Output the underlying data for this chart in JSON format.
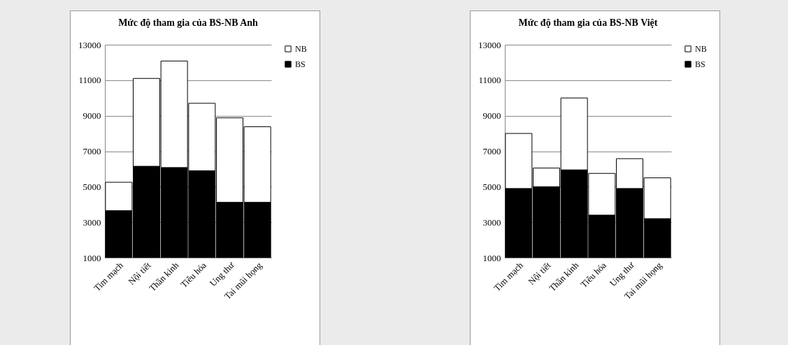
{
  "chart_data": [
    {
      "type": "bar",
      "title": "Mức độ tham gia của BS-NB Anh",
      "categories": [
        "Tim mạch",
        "Nội tiết",
        "Thần kinh",
        "Tiêu hóa",
        "Ung thư",
        "Tai mũi họng"
      ],
      "stacked": true,
      "series": [
        {
          "name": "BS",
          "color": "#000000",
          "values": [
            3650,
            6150,
            6080,
            5900,
            4120,
            4120
          ]
        },
        {
          "name": "NB",
          "color": "#ffffff",
          "values": [
            1600,
            4950,
            6000,
            3800,
            4760,
            4260
          ]
        }
      ],
      "ylim": [
        1000,
        13000
      ],
      "yticks": [
        1000,
        3000,
        5000,
        7000,
        9000,
        11000,
        13000
      ],
      "grid": "y",
      "legend": "right"
    },
    {
      "type": "bar",
      "title": "Mức độ tham gia của BS-NB Việt",
      "categories": [
        "Tim mạch",
        "Nội tiết",
        "Thần kinh",
        "Tiêu hóa",
        "Ung thư",
        "Tai mũi họng"
      ],
      "stacked": true,
      "series": [
        {
          "name": "BS",
          "color": "#000000",
          "values": [
            4900,
            5000,
            5950,
            3400,
            4900,
            3200
          ]
        },
        {
          "name": "NB",
          "color": "#ffffff",
          "values": [
            3100,
            1050,
            4050,
            2350,
            1680,
            2300
          ]
        }
      ],
      "ylim": [
        1000,
        13000
      ],
      "yticks": [
        1000,
        3000,
        5000,
        7000,
        9000,
        11000,
        13000
      ],
      "grid": "y",
      "legend": "right"
    }
  ]
}
